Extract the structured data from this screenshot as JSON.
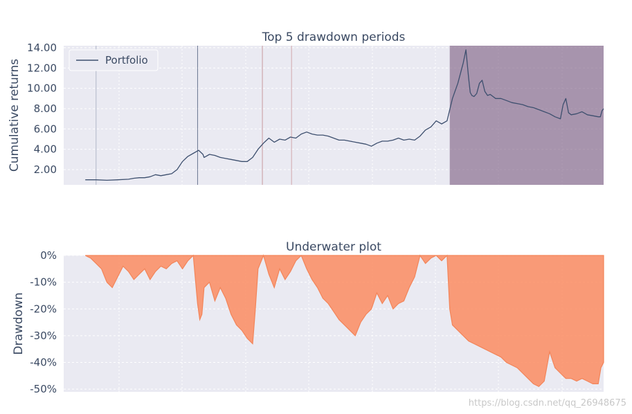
{
  "chart_data": [
    {
      "type": "line",
      "title": "Top 5 drawdown periods",
      "xlabel": "",
      "ylabel": "Cumulative returns",
      "ylim": [
        0.5,
        14.2
      ],
      "xlim": [
        0,
        100
      ],
      "yticks": [
        2,
        4,
        6,
        8,
        10,
        12,
        14
      ],
      "ytick_labels": [
        "2.00",
        "4.00",
        "6.00",
        "8.00",
        "10.00",
        "12.00",
        "14.00"
      ],
      "grid": true,
      "legend": {
        "position": "top-left",
        "entries": [
          "Portfolio"
        ]
      },
      "series": [
        {
          "name": "Portfolio",
          "color": "#3d4f6e",
          "x": [
            4,
            6,
            8,
            10,
            12,
            13,
            14,
            15,
            16,
            17,
            18,
            19,
            20,
            21,
            22,
            23,
            24,
            25,
            25.8,
            26,
            27,
            28,
            29,
            30,
            31,
            32,
            33,
            34,
            35,
            36,
            37,
            38,
            39,
            40,
            41,
            42,
            43,
            44,
            45,
            46,
            47,
            48,
            49,
            50,
            51,
            52,
            53,
            54,
            55,
            56,
            57,
            58,
            59,
            60,
            61,
            62,
            63,
            64,
            65,
            66,
            67,
            68,
            69,
            70,
            71,
            72,
            73,
            74,
            74.5,
            75,
            75.3,
            75.6,
            76,
            76.5,
            77,
            77.5,
            78,
            78.5,
            79,
            80,
            81,
            82,
            83,
            84,
            85,
            86,
            87,
            88,
            89,
            90,
            91,
            92,
            92.5,
            93,
            93.5,
            94,
            95,
            96,
            97,
            98,
            99,
            99.4,
            99.7,
            100
          ],
          "y": [
            1.0,
            1.0,
            0.95,
            1.0,
            1.05,
            1.15,
            1.2,
            1.2,
            1.3,
            1.5,
            1.4,
            1.5,
            1.6,
            2.0,
            2.8,
            3.3,
            3.6,
            3.9,
            3.5,
            3.2,
            3.5,
            3.4,
            3.2,
            3.1,
            3.0,
            2.9,
            2.8,
            2.8,
            3.2,
            4.0,
            4.6,
            5.1,
            4.7,
            5.0,
            4.9,
            5.2,
            5.1,
            5.5,
            5.7,
            5.5,
            5.4,
            5.4,
            5.3,
            5.1,
            4.9,
            4.9,
            4.8,
            4.7,
            4.6,
            4.5,
            4.3,
            4.6,
            4.8,
            4.8,
            4.9,
            5.1,
            4.9,
            5.0,
            4.9,
            5.3,
            5.9,
            6.2,
            6.8,
            6.5,
            6.8,
            9.0,
            10.5,
            12.5,
            13.8,
            11.0,
            9.6,
            9.3,
            9.2,
            9.5,
            10.5,
            10.8,
            9.7,
            9.3,
            9.4,
            9.0,
            9.0,
            8.8,
            8.6,
            8.5,
            8.4,
            8.2,
            8.1,
            7.9,
            7.7,
            7.5,
            7.2,
            7.0,
            8.4,
            9.0,
            7.6,
            7.4,
            7.5,
            7.7,
            7.4,
            7.3,
            7.2,
            7.2,
            7.8,
            8.0
          ]
        }
      ],
      "shaded_periods": [
        {
          "x_start": 71.5,
          "x_end": 100,
          "color": "#7a5a7f"
        }
      ],
      "vertical_markers": [
        {
          "x": 6,
          "color": "#b0b8c8"
        },
        {
          "x": 24.8,
          "color": "#6a7690"
        },
        {
          "x": 36.8,
          "color": "#c79a9e"
        },
        {
          "x": 42.2,
          "color": "#d2a8ac"
        }
      ]
    },
    {
      "type": "area",
      "title": "Underwater plot",
      "xlabel": "",
      "ylabel": "Drawdown",
      "ylim": [
        -51,
        0
      ],
      "xlim": [
        0,
        100
      ],
      "yticks": [
        0,
        -10,
        -20,
        -30,
        -40,
        -50
      ],
      "ytick_labels": [
        "0%",
        "-10%",
        "-20%",
        "-30%",
        "-40%",
        "-50%"
      ],
      "grid": true,
      "series": [
        {
          "color": "#fc8d62",
          "x": [
            4,
            5,
            6,
            7,
            8,
            9,
            10,
            11,
            12,
            13,
            14,
            15,
            16,
            17,
            18,
            19,
            20,
            21,
            22,
            23,
            24,
            24.8,
            25.2,
            25.6,
            26,
            27,
            28,
            29,
            30,
            31,
            32,
            33,
            34,
            35,
            35.5,
            36,
            37,
            38,
            39,
            40,
            41,
            42,
            43,
            44,
            45,
            46,
            47,
            48,
            49,
            50,
            51,
            52,
            53,
            54,
            55,
            56,
            57,
            58,
            59,
            60,
            61,
            62,
            63,
            64,
            65,
            66,
            67,
            68,
            69,
            70,
            71,
            71.5,
            72,
            73,
            74,
            75,
            76,
            77,
            78,
            79,
            80,
            81,
            82,
            83,
            84,
            85,
            86,
            87,
            88,
            89,
            90,
            91,
            92,
            92.5,
            93,
            94,
            95,
            96,
            97,
            98,
            99,
            99.5,
            100
          ],
          "y": [
            0,
            -1,
            -3,
            -5,
            -10,
            -12,
            -8,
            -4,
            -6,
            -9,
            -7,
            -5,
            -9,
            -6,
            -4,
            -5,
            -3,
            -2,
            -5,
            -2,
            0,
            -18,
            -24,
            -22,
            -12,
            -10,
            -17,
            -12,
            -16,
            -22,
            -26,
            -28,
            -31,
            -33,
            -20,
            -5,
            0,
            -7,
            -12,
            -5,
            -9,
            -6,
            -2,
            0,
            -5,
            -9,
            -12,
            -16,
            -18,
            -21,
            -24,
            -26,
            -28,
            -30,
            -25,
            -22,
            -20,
            -14,
            -18,
            -15,
            -20,
            -18,
            -17,
            -12,
            -8,
            0,
            -3,
            -1,
            0,
            -2,
            0,
            -20,
            -26,
            -28,
            -30,
            -32,
            -33,
            -34,
            -35,
            -36,
            -37,
            -38,
            -40,
            -41,
            -42,
            -44,
            -46,
            -48,
            -49,
            -47,
            -36,
            -42,
            -44,
            -45,
            -46,
            -46,
            -47,
            -46,
            -47,
            -48,
            -48,
            -42,
            -40
          ]
        }
      ]
    }
  ],
  "watermark": "https://blog.csdn.net/qq_26948675"
}
